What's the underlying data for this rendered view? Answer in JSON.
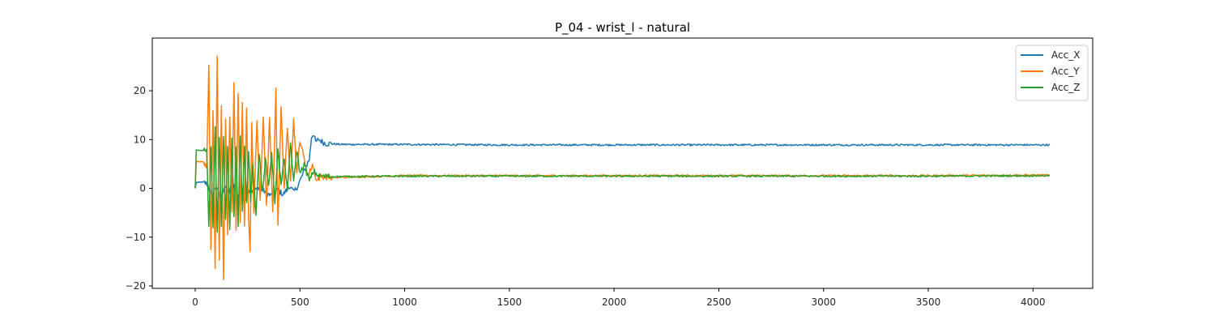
{
  "chart_data": {
    "type": "line",
    "title": "P_04 - wrist_l - natural",
    "xlabel": "",
    "ylabel": "",
    "xlim": [
      -205,
      4285
    ],
    "ylim": [
      -20.5,
      30.8
    ],
    "xticks": [
      0,
      500,
      1000,
      1500,
      2000,
      2500,
      3000,
      3500,
      4000
    ],
    "yticks": [
      -20,
      -10,
      0,
      10,
      20
    ],
    "ytick_labels": [
      "−20",
      "−10",
      "0",
      "10",
      "20"
    ],
    "grid": false,
    "legend_position": "top-right",
    "n_samples": 4080,
    "series": [
      {
        "name": "Acc_X",
        "color": "#1f77b4",
        "points": [
          [
            0,
            0.0
          ],
          [
            5,
            1.2
          ],
          [
            40,
            1.3
          ],
          [
            60,
            0.8
          ],
          [
            80,
            -1.8
          ],
          [
            100,
            0.6
          ],
          [
            120,
            -2.2
          ],
          [
            140,
            0.5
          ],
          [
            160,
            -1.0
          ],
          [
            180,
            1.0
          ],
          [
            200,
            -2.5
          ],
          [
            220,
            0.8
          ],
          [
            240,
            -1.8
          ],
          [
            260,
            0.0
          ],
          [
            280,
            -0.8
          ],
          [
            300,
            0.2
          ],
          [
            330,
            -0.6
          ],
          [
            360,
            -1.5
          ],
          [
            390,
            -0.2
          ],
          [
            420,
            -1.3
          ],
          [
            450,
            0.5
          ],
          [
            470,
            -0.8
          ],
          [
            490,
            0.5
          ],
          [
            510,
            2.5
          ],
          [
            530,
            4.5
          ],
          [
            545,
            6.0
          ],
          [
            555,
            10.5
          ],
          [
            565,
            11.2
          ],
          [
            575,
            9.5
          ],
          [
            590,
            10.0
          ],
          [
            620,
            9.2
          ],
          [
            700,
            9.0
          ],
          [
            1000,
            9.0
          ],
          [
            1500,
            8.9
          ],
          [
            2000,
            8.9
          ],
          [
            2500,
            8.9
          ],
          [
            3000,
            8.9
          ],
          [
            3500,
            8.9
          ],
          [
            4080,
            8.9
          ]
        ]
      },
      {
        "name": "Acc_Y",
        "color": "#ff7f0e",
        "points": [
          [
            0,
            0.0
          ],
          [
            5,
            5.5
          ],
          [
            40,
            5.4
          ],
          [
            55,
            4.0
          ],
          [
            65,
            25.7
          ],
          [
            75,
            -13.0
          ],
          [
            85,
            16.5
          ],
          [
            95,
            -16.3
          ],
          [
            105,
            27.6
          ],
          [
            115,
            -14.3
          ],
          [
            125,
            16.7
          ],
          [
            135,
            -18.2
          ],
          [
            145,
            14.5
          ],
          [
            155,
            -9.0
          ],
          [
            165,
            15.0
          ],
          [
            175,
            -5.0
          ],
          [
            185,
            21.1
          ],
          [
            195,
            -8.5
          ],
          [
            205,
            19.5
          ],
          [
            215,
            -7.0
          ],
          [
            225,
            18.0
          ],
          [
            235,
            -8.0
          ],
          [
            245,
            16.0
          ],
          [
            255,
            -6.0
          ],
          [
            262,
            -13.4
          ],
          [
            270,
            14.0
          ],
          [
            280,
            -5.0
          ],
          [
            295,
            14.0
          ],
          [
            310,
            -3.0
          ],
          [
            325,
            15.0
          ],
          [
            340,
            -4.0
          ],
          [
            355,
            14.0
          ],
          [
            370,
            -5.0
          ],
          [
            385,
            20.0
          ],
          [
            395,
            -7.6
          ],
          [
            410,
            16.7
          ],
          [
            425,
            0.0
          ],
          [
            440,
            12.0
          ],
          [
            455,
            2.0
          ],
          [
            470,
            14.0
          ],
          [
            485,
            3.0
          ],
          [
            500,
            10.0
          ],
          [
            520,
            6.0
          ],
          [
            540,
            2.5
          ],
          [
            560,
            5.0
          ],
          [
            580,
            1.5
          ],
          [
            600,
            2.5
          ],
          [
            650,
            2.2
          ],
          [
            1000,
            2.6
          ],
          [
            1500,
            2.6
          ],
          [
            2000,
            2.6
          ],
          [
            2500,
            2.6
          ],
          [
            3000,
            2.6
          ],
          [
            3500,
            2.6
          ],
          [
            4080,
            2.7
          ]
        ]
      },
      {
        "name": "Acc_Z",
        "color": "#2ca02c",
        "points": [
          [
            0,
            0.0
          ],
          [
            5,
            7.8
          ],
          [
            40,
            7.8
          ],
          [
            55,
            8.2
          ],
          [
            65,
            -7.8
          ],
          [
            75,
            8.5
          ],
          [
            85,
            -7.5
          ],
          [
            95,
            12.5
          ],
          [
            105,
            -9.5
          ],
          [
            115,
            11.0
          ],
          [
            125,
            -8.0
          ],
          [
            135,
            10.5
          ],
          [
            145,
            -6.5
          ],
          [
            155,
            9.0
          ],
          [
            165,
            -9.0
          ],
          [
            175,
            10.0
          ],
          [
            185,
            -6.0
          ],
          [
            195,
            8.0
          ],
          [
            205,
            -8.0
          ],
          [
            215,
            10.5
          ],
          [
            225,
            -5.0
          ],
          [
            235,
            9.0
          ],
          [
            245,
            -3.5
          ],
          [
            255,
            8.0
          ],
          [
            265,
            -2.5
          ],
          [
            275,
            5.0
          ],
          [
            290,
            -5.5
          ],
          [
            305,
            7.5
          ],
          [
            320,
            -1.0
          ],
          [
            335,
            6.0
          ],
          [
            350,
            0.5
          ],
          [
            365,
            7.0
          ],
          [
            380,
            -3.0
          ],
          [
            395,
            8.0
          ],
          [
            410,
            0.5
          ],
          [
            425,
            6.5
          ],
          [
            440,
            -1.0
          ],
          [
            455,
            9.5
          ],
          [
            470,
            1.0
          ],
          [
            485,
            8.0
          ],
          [
            500,
            3.0
          ],
          [
            520,
            5.0
          ],
          [
            545,
            1.5
          ],
          [
            565,
            3.5
          ],
          [
            590,
            2.5
          ],
          [
            650,
            2.4
          ],
          [
            1000,
            2.5
          ],
          [
            1500,
            2.5
          ],
          [
            2000,
            2.5
          ],
          [
            2500,
            2.5
          ],
          [
            3000,
            2.5
          ],
          [
            3500,
            2.5
          ],
          [
            4080,
            2.6
          ]
        ]
      }
    ]
  }
}
